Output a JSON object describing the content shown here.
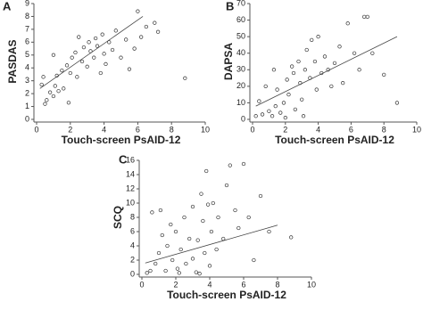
{
  "chart_data": [
    {
      "type": "scatter",
      "panel_label": "A",
      "xlabel": "Touch-screen PsAID-12",
      "ylabel": "PASDAS",
      "xlim": [
        0,
        10
      ],
      "ylim": [
        0,
        9
      ],
      "xticks": [
        0,
        2,
        4,
        6,
        8,
        10
      ],
      "yticks": [
        0,
        1,
        2,
        3,
        4,
        5,
        6,
        7,
        8,
        9
      ],
      "series": [
        {
          "x": [
            0.5,
            0.6,
            0.8,
            1,
            1.1,
            1.2,
            1.3,
            1.5,
            1.6,
            1.8,
            2,
            2.1,
            2.3,
            2.4,
            2.5,
            2.7,
            2.8,
            3,
            3.1,
            3.2,
            3.4,
            3.5,
            3.6,
            3.8,
            3.9,
            4,
            4.1,
            4.3,
            4.5,
            4.7,
            5,
            5.3,
            5.5,
            5.8,
            6,
            6.2,
            6.5,
            7,
            7.2,
            8.8,
            0.3,
            0.4,
            1.9,
            1
          ],
          "values": [
            1.2,
            1.5,
            2.1,
            1.8,
            2.6,
            3.4,
            2.2,
            3.8,
            2.4,
            4.2,
            3.6,
            4.8,
            5.2,
            3.3,
            6.4,
            4.5,
            5.6,
            4.1,
            6,
            5.3,
            4.8,
            6.3,
            5.7,
            3.6,
            6.6,
            5.1,
            4.3,
            6,
            5.4,
            6.9,
            4.8,
            6.2,
            3.9,
            5.5,
            8.4,
            6.4,
            7.2,
            7.5,
            6.8,
            3.2,
            2.7,
            3.3,
            1.3,
            5
          ]
        }
      ],
      "trend_line": {
        "x": [
          0.2,
          6.3
        ],
        "values": [
          2.4,
          8.0
        ]
      }
    },
    {
      "type": "scatter",
      "panel_label": "B",
      "xlabel": "Touch-screen PsAID-12",
      "ylabel": "DAPSA",
      "xlim": [
        0,
        10
      ],
      "ylim": [
        0,
        70
      ],
      "xticks": [
        0,
        2,
        4,
        6,
        8,
        10
      ],
      "yticks": [
        0,
        10,
        20,
        30,
        40,
        50,
        60,
        70
      ],
      "series": [
        {
          "x": [
            0.2,
            0.4,
            0.6,
            0.8,
            1,
            1.2,
            1.4,
            1.5,
            1.7,
            1.9,
            2.1,
            2.2,
            2.4,
            2.5,
            2.6,
            2.8,
            2.9,
            3,
            3.2,
            3.3,
            3.5,
            3.6,
            3.8,
            3.9,
            4,
            4.2,
            4.4,
            4.6,
            4.8,
            5,
            5.3,
            5.5,
            5.8,
            6.2,
            6.5,
            6.8,
            7,
            7.3,
            8,
            8.8,
            3.1,
            2,
            1.3
          ],
          "values": [
            2,
            11,
            3,
            20,
            5,
            2,
            8,
            18,
            4,
            10,
            24,
            15,
            32,
            28,
            6,
            35,
            22,
            12,
            30,
            42,
            25,
            48,
            35,
            18,
            50,
            28,
            38,
            30,
            20,
            34,
            44,
            22,
            58,
            40,
            30,
            62,
            62,
            40,
            27,
            10,
            2,
            1,
            30
          ]
        }
      ],
      "trend_line": {
        "x": [
          0.2,
          8.8
        ],
        "values": [
          8,
          50
        ]
      }
    },
    {
      "type": "scatter",
      "panel_label": "C",
      "xlabel": "Touch-screen PsAID-12",
      "ylabel": "SCQ",
      "xlim": [
        0,
        10
      ],
      "ylim": [
        0,
        16
      ],
      "xticks": [
        0,
        2,
        4,
        6,
        8,
        10
      ],
      "yticks": [
        0,
        2,
        4,
        6,
        8,
        10,
        12,
        14,
        16
      ],
      "series": [
        {
          "x": [
            0.3,
            0.5,
            0.6,
            0.8,
            1,
            1.1,
            1.2,
            1.4,
            1.5,
            1.7,
            1.8,
            2,
            2.1,
            2.3,
            2.5,
            2.6,
            2.8,
            3,
            3,
            3.2,
            3.3,
            3.5,
            3.6,
            3.7,
            3.8,
            3.9,
            4,
            4.1,
            4.2,
            4.4,
            4.5,
            4.8,
            5,
            5.2,
            5.5,
            5.7,
            6,
            6.3,
            6.6,
            7,
            7.5,
            8.8,
            2.2,
            3.4
          ],
          "values": [
            0.2,
            0.5,
            8.7,
            1.5,
            3,
            9,
            5.5,
            0.5,
            4,
            7,
            2,
            6,
            0.8,
            3.5,
            8,
            1.5,
            5,
            2.2,
            9.5,
            0.3,
            4.8,
            11.3,
            7.5,
            3,
            14.5,
            9.8,
            1.2,
            6,
            10,
            3.5,
            8,
            5,
            12.5,
            15.3,
            9,
            6.5,
            15.5,
            8,
            2,
            11,
            6,
            5.2,
            0.2,
            0.1
          ]
        }
      ],
      "trend_line": {
        "x": [
          0.2,
          8
        ],
        "values": [
          1.6,
          6.9
        ]
      }
    }
  ]
}
